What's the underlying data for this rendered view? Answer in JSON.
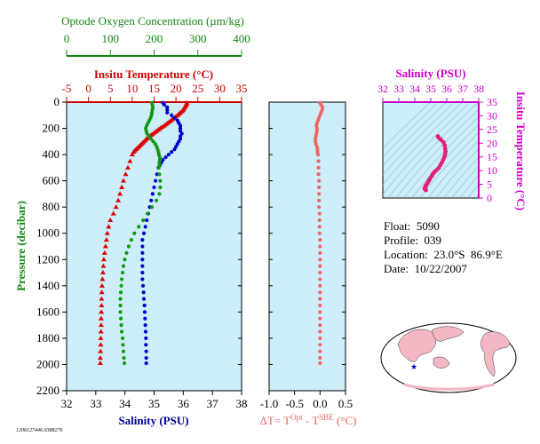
{
  "chart_data": [
    {
      "type": "scatter",
      "name": "profile",
      "ylabel": "Pressure (decibar)",
      "ylim": [
        0,
        2200
      ],
      "yticks": [
        0,
        200,
        400,
        600,
        800,
        1000,
        1200,
        1400,
        1600,
        1800,
        2000,
        2200
      ],
      "background": "#cdeef8",
      "axes": {
        "oxygen": {
          "label": "Optode Oxygen Concentration (µm/kg)",
          "lim": [
            0,
            400
          ],
          "ticks": [
            0,
            100,
            200,
            300,
            400
          ],
          "color": "#118811"
        },
        "temperature": {
          "label": "Insitu Temperature (°C)",
          "lim": [
            -5,
            35
          ],
          "ticks": [
            -5,
            0,
            5,
            10,
            15,
            20,
            25,
            30,
            35
          ],
          "color": "#cc0000"
        },
        "salinity": {
          "label": "Salinity (PSU)",
          "lim": [
            32,
            38
          ],
          "ticks": [
            32,
            33,
            34,
            35,
            36,
            37,
            38
          ],
          "color": "#000099"
        }
      },
      "series": [
        {
          "axis": "temperature",
          "color": "#dd0000",
          "marker": "triangle",
          "points": [
            [
              22.5,
              5
            ],
            [
              22.5,
              10
            ],
            [
              22.3,
              20
            ],
            [
              22.2,
              30
            ],
            [
              22.0,
              40
            ],
            [
              21.8,
              50
            ],
            [
              21.6,
              60
            ],
            [
              21.4,
              70
            ],
            [
              21.0,
              80
            ],
            [
              20.7,
              90
            ],
            [
              20.4,
              100
            ],
            [
              20.0,
              110
            ],
            [
              19.6,
              120
            ],
            [
              19.2,
              130
            ],
            [
              18.9,
              140
            ],
            [
              18.5,
              150
            ],
            [
              18.1,
              160
            ],
            [
              17.7,
              170
            ],
            [
              17.3,
              180
            ],
            [
              16.8,
              190
            ],
            [
              16.4,
              200
            ],
            [
              16.0,
              210
            ],
            [
              15.6,
              220
            ],
            [
              15.2,
              230
            ],
            [
              14.8,
              240
            ],
            [
              14.4,
              250
            ],
            [
              14.0,
              260
            ],
            [
              13.6,
              270
            ],
            [
              13.3,
              280
            ],
            [
              13.0,
              290
            ],
            [
              12.7,
              300
            ],
            [
              12.4,
              310
            ],
            [
              12.1,
              320
            ],
            [
              11.8,
              330
            ],
            [
              11.5,
              340
            ],
            [
              11.2,
              350
            ],
            [
              10.9,
              360
            ],
            [
              10.6,
              370
            ],
            [
              10.3,
              380
            ],
            [
              10.0,
              400
            ],
            [
              9.5,
              450
            ],
            [
              9.0,
              500
            ],
            [
              8.5,
              550
            ],
            [
              8.0,
              600
            ],
            [
              7.6,
              650
            ],
            [
              7.2,
              700
            ],
            [
              6.8,
              750
            ],
            [
              6.3,
              800
            ],
            [
              5.7,
              850
            ],
            [
              5.0,
              900
            ],
            [
              4.6,
              950
            ],
            [
              4.3,
              1000
            ],
            [
              4.1,
              1050
            ],
            [
              3.9,
              1100
            ],
            [
              3.7,
              1150
            ],
            [
              3.5,
              1200
            ],
            [
              3.4,
              1250
            ],
            [
              3.3,
              1300
            ],
            [
              3.2,
              1350
            ],
            [
              3.1,
              1400
            ],
            [
              3.05,
              1450
            ],
            [
              3.0,
              1500
            ],
            [
              3.0,
              1550
            ],
            [
              2.95,
              1600
            ],
            [
              2.9,
              1650
            ],
            [
              2.9,
              1700
            ],
            [
              2.85,
              1750
            ],
            [
              2.8,
              1800
            ],
            [
              2.8,
              1850
            ],
            [
              2.75,
              1900
            ],
            [
              2.7,
              1950
            ],
            [
              2.7,
              1990
            ]
          ]
        },
        {
          "axis": "salinity",
          "color": "#0000cc",
          "marker": "dot",
          "points": [
            [
              35.3,
              5
            ],
            [
              35.35,
              20
            ],
            [
              35.45,
              40
            ],
            [
              35.45,
              60
            ],
            [
              35.45,
              80
            ],
            [
              35.6,
              100
            ],
            [
              35.7,
              120
            ],
            [
              35.8,
              140
            ],
            [
              35.85,
              160
            ],
            [
              35.9,
              180
            ],
            [
              35.9,
              200
            ],
            [
              35.9,
              220
            ],
            [
              35.95,
              240
            ],
            [
              35.9,
              260
            ],
            [
              35.9,
              280
            ],
            [
              35.85,
              300
            ],
            [
              35.8,
              320
            ],
            [
              35.75,
              340
            ],
            [
              35.7,
              360
            ],
            [
              35.6,
              380
            ],
            [
              35.5,
              400
            ],
            [
              35.4,
              420
            ],
            [
              35.3,
              440
            ],
            [
              35.25,
              460
            ],
            [
              35.2,
              480
            ],
            [
              35.15,
              500
            ],
            [
              35.1,
              550
            ],
            [
              35.05,
              600
            ],
            [
              35.0,
              650
            ],
            [
              34.95,
              700
            ],
            [
              34.9,
              750
            ],
            [
              34.85,
              800
            ],
            [
              34.8,
              850
            ],
            [
              34.75,
              900
            ],
            [
              34.7,
              950
            ],
            [
              34.65,
              1000
            ],
            [
              34.6,
              1050
            ],
            [
              34.6,
              1100
            ],
            [
              34.6,
              1150
            ],
            [
              34.6,
              1200
            ],
            [
              34.6,
              1250
            ],
            [
              34.6,
              1300
            ],
            [
              34.6,
              1350
            ],
            [
              34.62,
              1400
            ],
            [
              34.64,
              1450
            ],
            [
              34.65,
              1500
            ],
            [
              34.67,
              1550
            ],
            [
              34.68,
              1600
            ],
            [
              34.69,
              1650
            ],
            [
              34.7,
              1700
            ],
            [
              34.71,
              1750
            ],
            [
              34.72,
              1800
            ],
            [
              34.72,
              1850
            ],
            [
              34.73,
              1900
            ],
            [
              34.73,
              1950
            ],
            [
              34.73,
              1990
            ]
          ]
        },
        {
          "axis": "oxygen",
          "color": "#119911",
          "marker": "dot",
          "points": [
            [
              195,
              5
            ],
            [
              196,
              20
            ],
            [
              197,
              40
            ],
            [
              196,
              60
            ],
            [
              195,
              80
            ],
            [
              194,
              100
            ],
            [
              192,
              120
            ],
            [
              189,
              140
            ],
            [
              186,
              160
            ],
            [
              183,
              180
            ],
            [
              181,
              200
            ],
            [
              182,
              220
            ],
            [
              184,
              240
            ],
            [
              188,
              260
            ],
            [
              193,
              280
            ],
            [
              198,
              300
            ],
            [
              203,
              320
            ],
            [
              206,
              340
            ],
            [
              208,
              360
            ],
            [
              210,
              380
            ],
            [
              211,
              400
            ],
            [
              213,
              420
            ],
            [
              213,
              440
            ],
            [
              212,
              460
            ],
            [
              212,
              480
            ],
            [
              211,
              500
            ],
            [
              212,
              550
            ],
            [
              214,
              600
            ],
            [
              214,
              650
            ],
            [
              212,
              700
            ],
            [
              205,
              750
            ],
            [
              195,
              800
            ],
            [
              185,
              850
            ],
            [
              175,
              900
            ],
            [
              165,
              950
            ],
            [
              155,
              1000
            ],
            [
              148,
              1050
            ],
            [
              142,
              1100
            ],
            [
              137,
              1150
            ],
            [
              133,
              1200
            ],
            [
              130,
              1250
            ],
            [
              128,
              1300
            ],
            [
              126,
              1350
            ],
            [
              125,
              1400
            ],
            [
              124,
              1450
            ],
            [
              123,
              1500
            ],
            [
              123,
              1550
            ],
            [
              123,
              1600
            ],
            [
              124,
              1650
            ],
            [
              125,
              1700
            ],
            [
              126,
              1750
            ],
            [
              128,
              1800
            ],
            [
              129,
              1850
            ],
            [
              130,
              1900
            ],
            [
              131,
              1950
            ],
            [
              132,
              1990
            ]
          ]
        }
      ]
    },
    {
      "type": "scatter",
      "name": "difference",
      "xlabel_base": "ΔT= T",
      "xlabel_sup1": "Opt",
      "xlabel_mid": " - T",
      "xlabel_sup2": "SBE",
      "xlabel_tail": " (°C)",
      "xlim": [
        -1.0,
        0.5
      ],
      "xticks": [
        "-1.0",
        "-0.5",
        "0.0",
        "0.5"
      ],
      "ylim": [
        0,
        2200
      ],
      "color": "#ee6666",
      "points": [
        [
          0.0,
          5
        ],
        [
          0.02,
          20
        ],
        [
          0.05,
          40
        ],
        [
          0.04,
          60
        ],
        [
          0.02,
          80
        ],
        [
          0.0,
          100
        ],
        [
          -0.02,
          120
        ],
        [
          -0.04,
          140
        ],
        [
          -0.06,
          160
        ],
        [
          -0.07,
          180
        ],
        [
          -0.06,
          200
        ],
        [
          -0.06,
          220
        ],
        [
          -0.07,
          240
        ],
        [
          -0.08,
          260
        ],
        [
          -0.09,
          280
        ],
        [
          -0.09,
          300
        ],
        [
          -0.08,
          320
        ],
        [
          -0.06,
          340
        ],
        [
          -0.05,
          360
        ],
        [
          -0.05,
          380
        ],
        [
          -0.04,
          400
        ],
        [
          -0.03,
          450
        ],
        [
          -0.03,
          500
        ],
        [
          -0.03,
          550
        ],
        [
          -0.02,
          600
        ],
        [
          -0.02,
          650
        ],
        [
          -0.02,
          700
        ],
        [
          -0.02,
          750
        ],
        [
          -0.02,
          800
        ],
        [
          -0.01,
          850
        ],
        [
          -0.01,
          900
        ],
        [
          -0.01,
          950
        ],
        [
          -0.01,
          1000
        ],
        [
          0.0,
          1050
        ],
        [
          0.0,
          1100
        ],
        [
          0.0,
          1150
        ],
        [
          0.0,
          1200
        ],
        [
          0.0,
          1250
        ],
        [
          0.0,
          1300
        ],
        [
          0.0,
          1350
        ],
        [
          0.0,
          1400
        ],
        [
          0.0,
          1450
        ],
        [
          0.0,
          1500
        ],
        [
          0.0,
          1550
        ],
        [
          0.0,
          1600
        ],
        [
          0.0,
          1650
        ],
        [
          0.0,
          1700
        ],
        [
          0.0,
          1750
        ],
        [
          0.0,
          1800
        ],
        [
          0.0,
          1850
        ],
        [
          0.0,
          1900
        ],
        [
          0.0,
          1950
        ],
        [
          0.0,
          1990
        ]
      ]
    },
    {
      "type": "scatter",
      "name": "ts-diagram",
      "xlabel": "Salinity (PSU)",
      "ylabel": "Insitu Temperature (°C)",
      "xlim": [
        32,
        38
      ],
      "xticks": [
        32,
        33,
        34,
        35,
        36,
        37,
        38
      ],
      "ylim": [
        0,
        35
      ],
      "yticks": [
        0,
        5,
        10,
        15,
        20,
        25,
        30,
        35
      ],
      "color": "#e0207a",
      "axis_color": "#cc00cc",
      "points": [
        [
          35.45,
          22.5
        ],
        [
          35.5,
          22.0
        ],
        [
          35.65,
          21.2
        ],
        [
          35.8,
          20.3
        ],
        [
          35.88,
          19.2
        ],
        [
          35.9,
          18.0
        ],
        [
          35.92,
          17.0
        ],
        [
          35.9,
          16.0
        ],
        [
          35.85,
          15.0
        ],
        [
          35.78,
          14.0
        ],
        [
          35.7,
          13.0
        ],
        [
          35.6,
          12.0
        ],
        [
          35.5,
          11.0
        ],
        [
          35.38,
          10.3
        ],
        [
          35.25,
          9.6
        ],
        [
          35.15,
          9.0
        ],
        [
          35.08,
          8.2
        ],
        [
          35.0,
          7.5
        ],
        [
          34.92,
          6.7
        ],
        [
          34.85,
          6.0
        ],
        [
          34.78,
          5.3
        ],
        [
          34.7,
          4.6
        ],
        [
          34.65,
          4.0
        ],
        [
          34.62,
          3.5
        ],
        [
          34.65,
          3.1
        ],
        [
          34.7,
          2.9
        ]
      ]
    }
  ],
  "float_info": {
    "float": "Float:  5090",
    "profile": "Profile:  039",
    "location": "Location:  23.0°S  86.9°E",
    "date": "Date:  10/22/2007"
  },
  "map": {
    "ocean_color": "#ffffff",
    "land_color": "#f4b8c4",
    "marker": "★"
  },
  "footer_id": "1206127446.0388276"
}
